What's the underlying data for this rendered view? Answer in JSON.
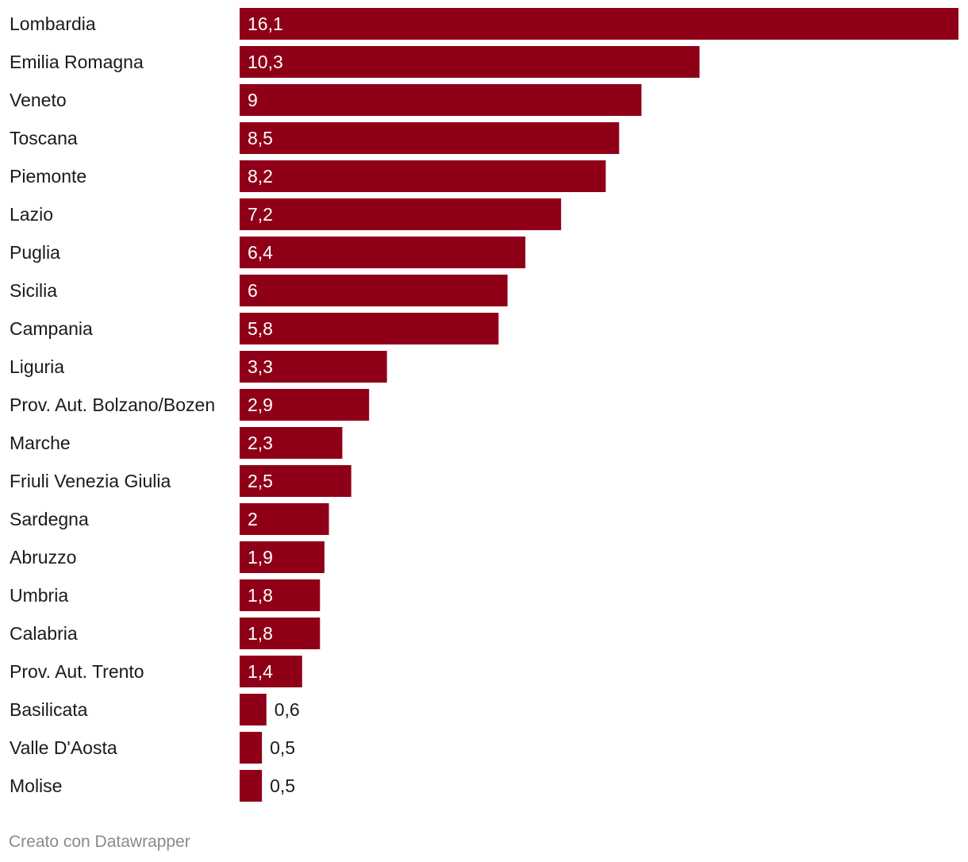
{
  "chart_data": {
    "type": "bar",
    "orientation": "horizontal",
    "bar_color": "#8f0018",
    "value_inside_color": "#ffffff",
    "value_outside_color": "#1a1a1a",
    "decimal_separator": ",",
    "categories": [
      "Lombardia",
      "Emilia Romagna",
      "Veneto",
      "Toscana",
      "Piemonte",
      "Lazio",
      "Puglia",
      "Sicilia",
      "Campania",
      "Liguria",
      "Prov. Aut. Bolzano/Bozen",
      "Marche",
      "Friuli Venezia Giulia",
      "Sardegna",
      "Abruzzo",
      "Umbria",
      "Calabria",
      "Prov. Aut. Trento",
      "Basilicata",
      "Valle D'Aosta",
      "Molise"
    ],
    "values": [
      16.1,
      10.3,
      9,
      8.5,
      8.2,
      7.2,
      6.4,
      6,
      5.8,
      3.3,
      2.9,
      2.3,
      2.5,
      2,
      1.9,
      1.8,
      1.8,
      1.4,
      0.6,
      0.5,
      0.5
    ],
    "value_labels": [
      "16,1",
      "10,3",
      "9",
      "8,5",
      "8,2",
      "7,2",
      "6,4",
      "6",
      "5,8",
      "3,3",
      "2,9",
      "2,3",
      "2,5",
      "2",
      "1,9",
      "1,8",
      "1,8",
      "1,4",
      "0,6",
      "0,5",
      "0,5"
    ],
    "xlim": [
      0,
      16.1
    ],
    "grid": false,
    "legend": "none"
  },
  "footer": {
    "credit": "Creato con Datawrapper"
  }
}
